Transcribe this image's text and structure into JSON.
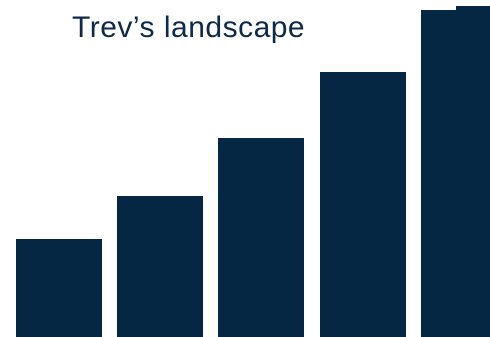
{
  "title": "Trev’s landscape",
  "colors": {
    "bar": "#062743"
  },
  "bars": [
    {
      "level": 0.3
    },
    {
      "level": 0.43
    },
    {
      "level": 0.61
    },
    {
      "level": 0.81
    },
    {
      "level": 1.0
    }
  ]
}
